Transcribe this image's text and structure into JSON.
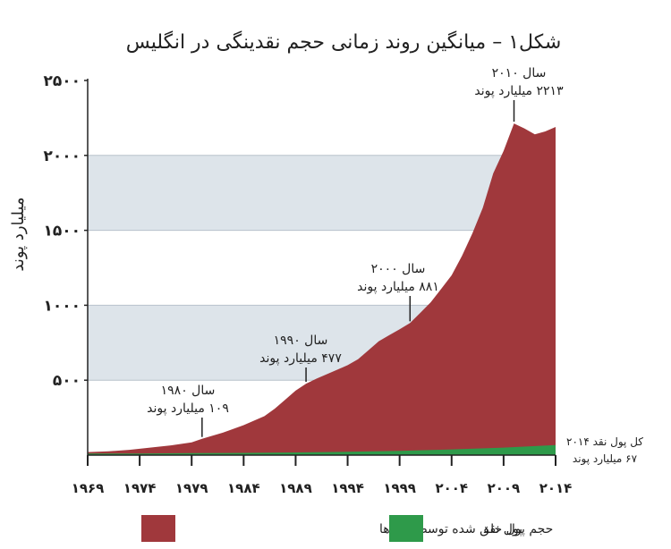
{
  "chart_data": {
    "type": "area",
    "title": "شکل۱ – میانگین روند زمانی حجم نقدینگی در انگلیس",
    "ylabel": "میلیارد پوند",
    "xlabel": "",
    "ylim": [
      0,
      2500
    ],
    "xlim": [
      1969,
      2014
    ],
    "y_ticks": [
      500,
      1000,
      1500,
      2000,
      2500
    ],
    "y_tick_labels": [
      "۵۰۰",
      "۱۰۰۰",
      "۱۵۰۰",
      "۲۰۰۰",
      "۲۵۰۰"
    ],
    "x_ticks": [
      1969,
      1974,
      1979,
      1984,
      1989,
      1994,
      1999,
      2004,
      2009,
      2014
    ],
    "x_tick_labels": [
      "۱۹۶۹",
      "۱۹۷۴",
      "۱۹۷۹",
      "۱۹۸۴",
      "۱۹۸۹",
      "۱۹۹۴",
      "۱۹۹۹",
      "۲۰۰۴",
      "۲۰۰۹",
      "۲۰۱۴"
    ],
    "shaded_bands": [
      [
        500,
        1000
      ],
      [
        1500,
        2000
      ]
    ],
    "band_color": "#dde4ea",
    "series": [
      {
        "name": "حجم پول خلق شده توسط بانک‌ها",
        "color": "#a0383c",
        "x": [
          1969,
          1971,
          1973,
          1975,
          1977,
          1979,
          1980,
          1982,
          1984,
          1986,
          1987,
          1988,
          1989,
          1990,
          1991,
          1992,
          1993,
          1994,
          1995,
          1996,
          1997,
          1998,
          1999,
          2000,
          2001,
          2002,
          2003,
          2004,
          2005,
          2006,
          2007,
          2008,
          2009,
          2010,
          2011,
          2012,
          2013,
          2014
        ],
        "values": [
          20,
          25,
          35,
          50,
          65,
          85,
          109,
          150,
          200,
          260,
          310,
          370,
          430,
          477,
          510,
          540,
          570,
          600,
          640,
          700,
          760,
          800,
          840,
          881,
          950,
          1020,
          1110,
          1200,
          1330,
          1480,
          1650,
          1880,
          2030,
          2213,
          2180,
          2140,
          2160,
          2190
        ]
      },
      {
        "name": "پول نقد",
        "color": "#2e9a4a",
        "x": [
          1969,
          1974,
          1979,
          1984,
          1989,
          1994,
          1999,
          2004,
          2009,
          2014
        ],
        "values": [
          10,
          11,
          13,
          15,
          18,
          22,
          28,
          38,
          50,
          67
        ]
      }
    ],
    "annotations": [
      {
        "year": 1980,
        "value": 109,
        "line1": "سال ۱۹۸۰",
        "line2": "۱۰۹ میلیارد پوند"
      },
      {
        "year": 1990,
        "value": 477,
        "line1": "سال ۱۹۹۰",
        "line2": "۴۷۷ میلیارد پوند"
      },
      {
        "year": 2000,
        "value": 881,
        "line1": "سال ۲۰۰۰",
        "line2": "۸۸۱ میلیارد پوند"
      },
      {
        "year": 2010,
        "value": 2213,
        "line1": "سال ۲۰۱۰",
        "line2": "۲۲۱۳ میلیارد پوند"
      },
      {
        "year": 2014,
        "value": 67,
        "line1": "کل پول نقد ۲۰۱۴",
        "line2": "۶۷ میلیارد پوند"
      }
    ],
    "legend_placement": "bottom"
  }
}
